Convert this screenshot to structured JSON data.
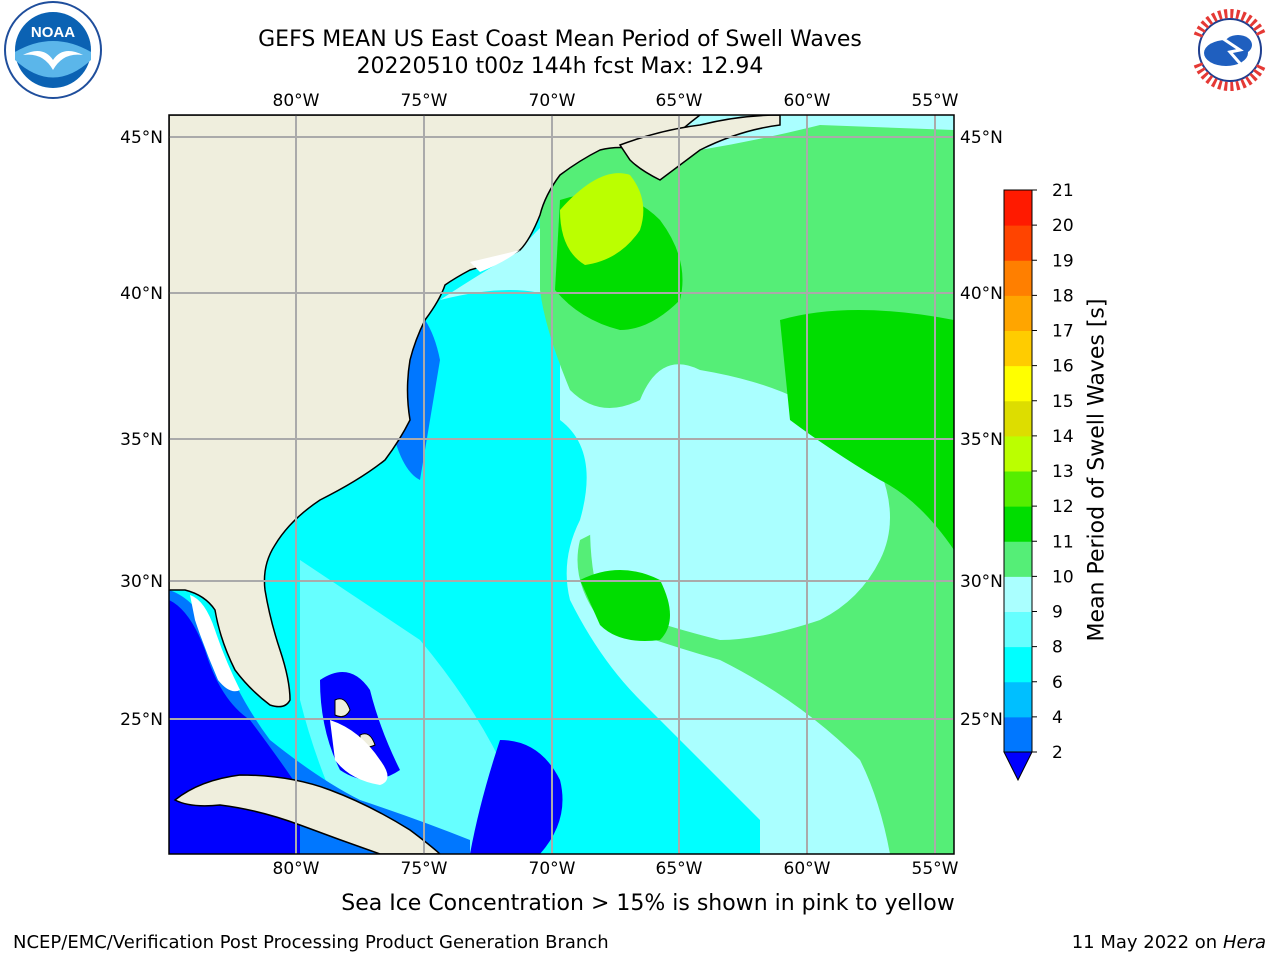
{
  "header": {
    "title_line1": "GEFS MEAN US East Coast Mean Period of Swell Waves",
    "title_line2": "20220510 t00z 144h fcst   Max: 12.94"
  },
  "map": {
    "lon_ticks": [
      "80°W",
      "75°W",
      "70°W",
      "65°W",
      "60°W",
      "55°W"
    ],
    "lat_ticks": [
      "45°N",
      "40°N",
      "35°N",
      "30°N",
      "25°N"
    ],
    "land_color": "#efeedd",
    "ocean_base_color": "#00ffff"
  },
  "colorbar": {
    "label": "Mean Period of Swell Waves [s]",
    "levels": [
      "2",
      "4",
      "6",
      "8",
      "9",
      "10",
      "11",
      "12",
      "13",
      "14",
      "15",
      "16",
      "17",
      "18",
      "19",
      "20",
      "21"
    ],
    "colors": [
      "#0000ff",
      "#0077ff",
      "#00bfff",
      "#00ffff",
      "#66ffff",
      "#aaffff",
      "#55ee77",
      "#00dd00",
      "#55ee00",
      "#bbff00",
      "#dddd00",
      "#ffff00",
      "#ffcc00",
      "#ffa500",
      "#ff7f00",
      "#ff4400",
      "#ff1a00",
      "#ff0000"
    ]
  },
  "logos": {
    "left": "NOAA",
    "right": "NATIONAL WEATHER SERVICE"
  },
  "footer": {
    "note": "Sea Ice Concentration > 15% is shown in pink to yellow",
    "left": "NCEP/EMC/Verification Post Processing Product Generation Branch",
    "right_date": "11 May 2022 on",
    "right_host": "Hera"
  }
}
